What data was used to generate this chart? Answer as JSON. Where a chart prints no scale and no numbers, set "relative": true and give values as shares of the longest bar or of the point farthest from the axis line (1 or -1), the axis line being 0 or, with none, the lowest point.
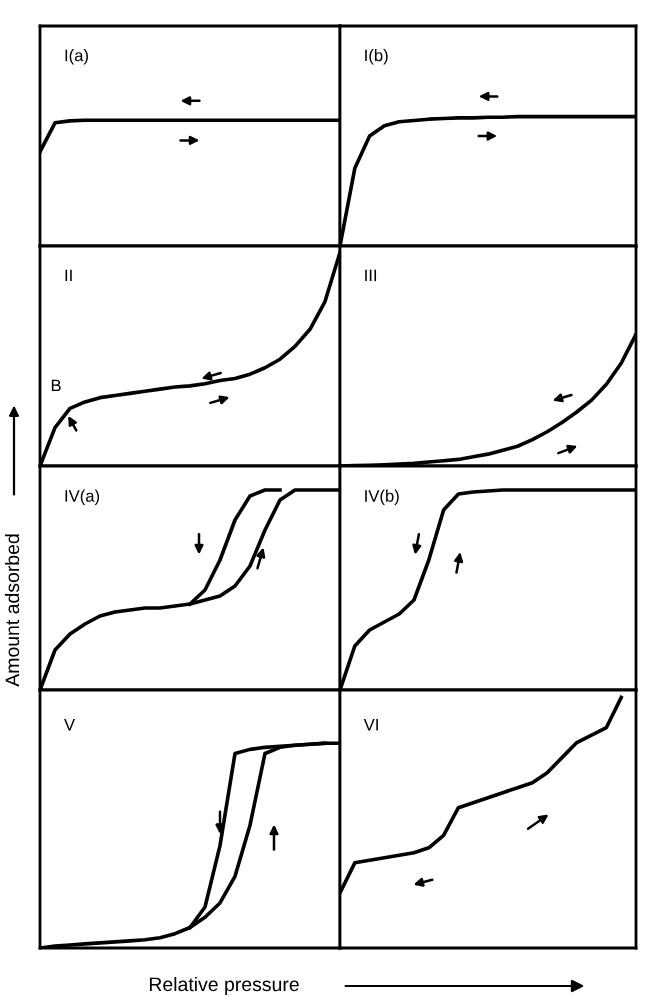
{
  "chart_data": [
    {
      "type": "line",
      "title": "I(a)",
      "relative": true,
      "categories": [
        null,
        null,
        null,
        null,
        null,
        null,
        null,
        null,
        null,
        null,
        null,
        null,
        null,
        null,
        null,
        null,
        null,
        null,
        null,
        null,
        null
      ],
      "series": [
        {
          "color": "#000000",
          "values": [
            0.75,
            0.98,
            0.995,
            1,
            1,
            1,
            1,
            1,
            1,
            1,
            1,
            1,
            1,
            1,
            1,
            1,
            1,
            1,
            1,
            1,
            1
          ]
        }
      ]
    },
    {
      "type": "line",
      "title": "I(b)",
      "relative": true,
      "categories": [
        null,
        null,
        null,
        null,
        null,
        null,
        null,
        null,
        null,
        null,
        null,
        null,
        null,
        null,
        null,
        null,
        null,
        null,
        null,
        null,
        null
      ],
      "series": [
        {
          "color": "#000000",
          "values": [
            0,
            0.6,
            0.85,
            0.93,
            0.96,
            0.97,
            0.98,
            0.985,
            0.99,
            0.99,
            0.995,
            0.995,
            1,
            1,
            1,
            1,
            1,
            1,
            1,
            1,
            1
          ]
        }
      ]
    },
    {
      "type": "line",
      "title": "II",
      "relative": true,
      "annotations": [
        "B"
      ],
      "categories": [
        null,
        null,
        null,
        null,
        null,
        null,
        null,
        null,
        null,
        null,
        null,
        null,
        null,
        null,
        null,
        null,
        null,
        null,
        null,
        null,
        null
      ],
      "series": [
        {
          "color": "#000000",
          "values": [
            0,
            0.18,
            0.27,
            0.3,
            0.32,
            0.33,
            0.34,
            0.35,
            0.36,
            0.37,
            0.375,
            0.385,
            0.4,
            0.41,
            0.43,
            0.46,
            0.5,
            0.56,
            0.64,
            0.77,
            1.0
          ]
        }
      ]
    },
    {
      "type": "line",
      "title": "III",
      "relative": true,
      "categories": [
        null,
        null,
        null,
        null,
        null,
        null,
        null,
        null,
        null,
        null,
        null,
        null,
        null,
        null,
        null,
        null,
        null,
        null,
        null,
        null,
        null
      ],
      "series": [
        {
          "color": "#000000",
          "values": [
            0,
            0.003,
            0.006,
            0.01,
            0.015,
            0.02,
            0.03,
            0.04,
            0.05,
            0.07,
            0.09,
            0.12,
            0.15,
            0.2,
            0.26,
            0.33,
            0.41,
            0.5,
            0.62,
            0.78,
            1
          ]
        }
      ]
    },
    {
      "type": "line",
      "title": "IV(a)",
      "ylabel": "Amount adsorbed",
      "relative": true,
      "categories": [
        null,
        null,
        null,
        null,
        null,
        null,
        null,
        null,
        null,
        null,
        null,
        null,
        null,
        null,
        null,
        null,
        null,
        null,
        null,
        null,
        null
      ],
      "series": [
        {
          "color": "#000000",
          "values": [
            0,
            0.2,
            0.28,
            0.33,
            0.37,
            0.39,
            0.4,
            0.41,
            0.41,
            0.42,
            0.43,
            0.45,
            0.47,
            0.52,
            0.62,
            0.8,
            0.95,
            1,
            1,
            1,
            1
          ]
        },
        {
          "color": "#000000",
          "values": [
            null,
            null,
            null,
            null,
            null,
            null,
            null,
            null,
            null,
            null,
            0.43,
            0.5,
            0.65,
            0.85,
            0.97,
            1,
            1,
            null,
            null,
            null,
            null
          ]
        }
      ]
    },
    {
      "type": "line",
      "title": "IV(b)",
      "relative": true,
      "categories": [
        null,
        null,
        null,
        null,
        null,
        null,
        null,
        null,
        null,
        null,
        null,
        null,
        null,
        null,
        null,
        null,
        null,
        null,
        null,
        null,
        null
      ],
      "series": [
        {
          "color": "#000000",
          "values": [
            0,
            0.22,
            0.3,
            0.34,
            0.38,
            0.45,
            0.65,
            0.9,
            0.98,
            0.99,
            0.995,
            1,
            1,
            1,
            1,
            1,
            1,
            1,
            1,
            1,
            1
          ]
        }
      ]
    },
    {
      "type": "line",
      "title": "V",
      "xlabel": "Relative pressure",
      "relative": true,
      "categories": [
        null,
        null,
        null,
        null,
        null,
        null,
        null,
        null,
        null,
        null,
        null,
        null,
        null,
        null,
        null,
        null,
        null,
        null,
        null,
        null,
        null
      ],
      "series": [
        {
          "color": "#000000",
          "values": [
            0,
            0.01,
            0.015,
            0.02,
            0.025,
            0.03,
            0.035,
            0.04,
            0.05,
            0.07,
            0.1,
            0.15,
            0.22,
            0.35,
            0.6,
            0.95,
            0.98,
            0.99,
            0.995,
            1,
            1
          ]
        },
        {
          "color": "#000000",
          "values": [
            null,
            null,
            null,
            null,
            null,
            null,
            null,
            null,
            null,
            null,
            0.1,
            0.2,
            0.5,
            0.95,
            0.97,
            0.98,
            0.985,
            0.99,
            0.995,
            1,
            null
          ]
        }
      ]
    },
    {
      "type": "line",
      "title": "VI",
      "relative": true,
      "categories": [
        null,
        null,
        null,
        null,
        null,
        null,
        null,
        null,
        null,
        null,
        null,
        null,
        null,
        null,
        null,
        null,
        null,
        null,
        null,
        null,
        null
      ],
      "series": [
        {
          "color": "#000000",
          "values": [
            0.22,
            0.34,
            0.35,
            0.36,
            0.37,
            0.38,
            0.4,
            0.45,
            0.56,
            0.58,
            0.6,
            0.62,
            0.64,
            0.66,
            0.7,
            0.76,
            0.82,
            0.85,
            0.88,
            1,
            null
          ]
        }
      ]
    }
  ]
}
